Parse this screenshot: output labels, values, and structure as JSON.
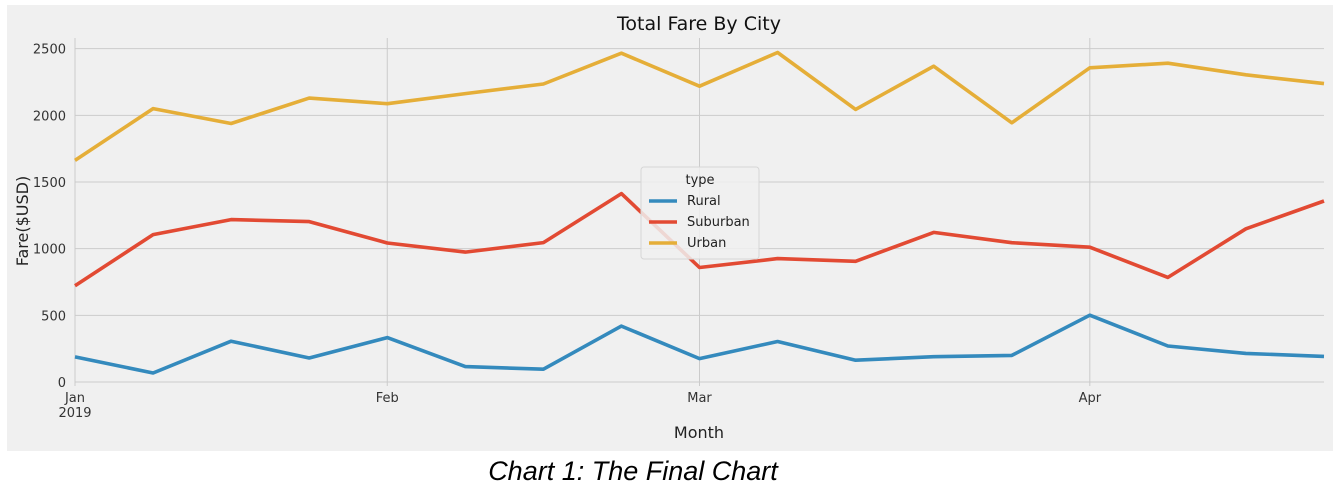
{
  "caption": "Chart 1: The Final Chart",
  "chart_data": {
    "type": "line",
    "title": "Total Fare By City",
    "xlabel": "Month",
    "ylabel": "Fare($USD)",
    "x": [
      "2019-01-06",
      "2019-01-13",
      "2019-01-20",
      "2019-01-27",
      "2019-02-03",
      "2019-02-10",
      "2019-02-17",
      "2019-02-24",
      "2019-03-03",
      "2019-03-10",
      "2019-03-17",
      "2019-03-24",
      "2019-03-31",
      "2019-04-07",
      "2019-04-14",
      "2019-04-21",
      "2019-04-28"
    ],
    "xlim": [
      "2019-01-06",
      "2019-04-28"
    ],
    "xticks": [
      {
        "date": "2019-01-06",
        "label": "Jan",
        "sublabel": "2019"
      },
      {
        "date": "2019-02-03",
        "label": "Feb",
        "sublabel": ""
      },
      {
        "date": "2019-03-03",
        "label": "Mar",
        "sublabel": ""
      },
      {
        "date": "2019-04-07",
        "label": "Apr",
        "sublabel": ""
      }
    ],
    "ylim": [
      -30,
      2580
    ],
    "yticks": [
      0,
      500,
      1000,
      1500,
      2000,
      2500
    ],
    "grid": true,
    "legend": {
      "title": "type",
      "placement": "center"
    },
    "series": [
      {
        "name": "Rural",
        "color": "#348ABD",
        "values": [
          187.92,
          67.65,
          306.0,
          179.69,
          333.08,
          115.8,
          95.82,
          419.06,
          175.14,
          303.94,
          163.39,
          189.76,
          199.42,
          501.24,
          269.79,
          214.14,
          191.85
        ]
      },
      {
        "name": "Suburban",
        "color": "#E24A33",
        "values": [
          721.6,
          1105.13,
          1218.2,
          1203.28,
          1042.79,
          974.34,
          1045.5,
          1412.74,
          858.46,
          925.27,
          905.2,
          1122.2,
          1045.06,
          1010.73,
          784.82,
          1149.27,
          1357.75
        ]
      },
      {
        "name": "Urban",
        "color": "#E5AE38",
        "values": [
          1661.68,
          2050.43,
          1939.02,
          2129.51,
          2086.94,
          2162.64,
          2235.07,
          2466.29,
          2218.2,
          2470.93,
          2044.42,
          2368.37,
          1944.26,
          2356.7,
          2390.72,
          2303.8,
          2238.29
        ]
      }
    ]
  }
}
